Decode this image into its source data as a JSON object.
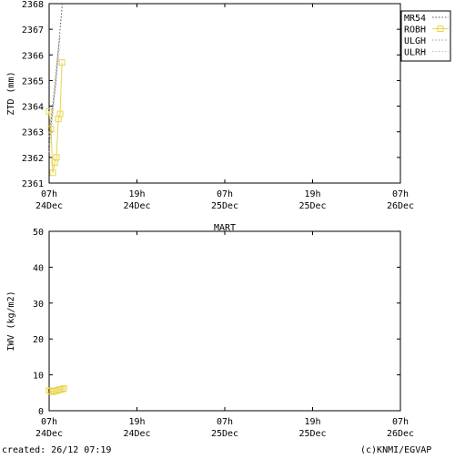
{
  "colors": {
    "mr54": "#555555",
    "robh": "#e8d44a",
    "ulgh": "#999999",
    "ulrh": "#aaaaaa",
    "axis": "#000000",
    "background": "#ffffff"
  },
  "footer": {
    "created": "created: 26/12 07:19",
    "copyright": "(c)KNMI/EGVAP"
  },
  "chart_data": [
    {
      "type": "line",
      "title": "",
      "ylabel": "ZTD (mm)",
      "xlabel": "",
      "ylim": [
        2361,
        2368
      ],
      "yticks": [
        2361,
        2362,
        2363,
        2364,
        2365,
        2366,
        2367,
        2368
      ],
      "xlim": [
        0,
        48
      ],
      "xticks": [
        {
          "x": 0,
          "line1": "07h",
          "line2": "24Dec"
        },
        {
          "x": 12,
          "line1": "19h",
          "line2": "24Dec"
        },
        {
          "x": 24,
          "line1": "07h",
          "line2": "25Dec"
        },
        {
          "x": 36,
          "line1": "19h",
          "line2": "25Dec"
        },
        {
          "x": 48,
          "line1": "07h",
          "line2": "26Dec"
        }
      ],
      "grid": false,
      "legend_position": "top-right",
      "series": [
        {
          "name": "MR54",
          "style": "dotted",
          "color_key": "mr54",
          "x": [
            0.0,
            0.3,
            0.6,
            0.9,
            1.2,
            1.5,
            1.8
          ],
          "y": [
            2362.5,
            2363.4,
            2364.2,
            2364.9,
            2366.0,
            2367.0,
            2368.0
          ]
        },
        {
          "name": "ROBH",
          "style": "solid-square",
          "color_key": "robh",
          "x": [
            0.0,
            0.25,
            0.5,
            0.75,
            1.0,
            1.25,
            1.5,
            1.75
          ],
          "y": [
            2363.8,
            2363.1,
            2361.4,
            2361.8,
            2362.0,
            2363.5,
            2363.7,
            2365.7
          ]
        },
        {
          "name": "ULGH",
          "style": "dotted",
          "color_key": "ulgh",
          "x": [
            0.0,
            0.3,
            0.6,
            0.9,
            1.2,
            1.5
          ],
          "y": [
            2362.8,
            2363.6,
            2364.4,
            2365.3,
            2366.1,
            2366.7
          ]
        },
        {
          "name": "ULRH",
          "style": "dotted",
          "color_key": "ulrh",
          "x": [
            0.0,
            0.3,
            0.6,
            0.9,
            1.2,
            1.5
          ],
          "y": [
            2362.2,
            2363.0,
            2363.9,
            2364.8,
            2365.7,
            2366.3
          ]
        }
      ]
    },
    {
      "type": "line",
      "title": "MART",
      "ylabel": "IWV (kg/m2)",
      "xlabel": "",
      "ylim": [
        0,
        50
      ],
      "yticks": [
        0,
        10,
        20,
        30,
        40,
        50
      ],
      "xlim": [
        0,
        48
      ],
      "xticks": [
        {
          "x": 0,
          "line1": "07h",
          "line2": "24Dec"
        },
        {
          "x": 12,
          "line1": "19h",
          "line2": "24Dec"
        },
        {
          "x": 24,
          "line1": "07h",
          "line2": "25Dec"
        },
        {
          "x": 36,
          "line1": "19h",
          "line2": "25Dec"
        },
        {
          "x": 48,
          "line1": "07h",
          "line2": "26Dec"
        }
      ],
      "grid": false,
      "series": [
        {
          "name": "ROBH",
          "style": "solid-square",
          "color_key": "robh",
          "x": [
            0.0,
            0.25,
            0.5,
            0.75,
            1.0,
            1.25,
            1.5,
            1.75,
            2.0
          ],
          "y": [
            5.6,
            5.4,
            5.3,
            5.5,
            5.6,
            5.8,
            5.9,
            6.0,
            6.2
          ]
        }
      ]
    }
  ]
}
